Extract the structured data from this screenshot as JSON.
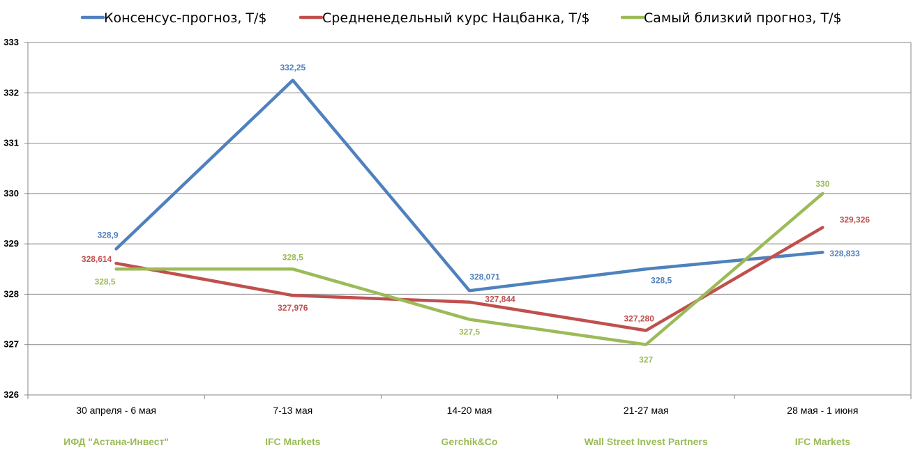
{
  "chart_data": {
    "type": "line",
    "categories": [
      "30 апреля - 6 мая",
      "7-13 мая",
      "14-20 мая",
      "21-27 мая",
      "28 мая - 1 июня"
    ],
    "subcategories": [
      "ИФД \"Астана-Инвест\"",
      "IFC Markets",
      "Gerchik&Co",
      "Wall Street Invest Partners",
      "IFC Markets"
    ],
    "subcategory_color": "#9bbb59",
    "ylim": [
      326,
      333
    ],
    "yticks": [
      326,
      327,
      328,
      329,
      330,
      331,
      332,
      333
    ],
    "grid": true,
    "legend_position": "top",
    "series": [
      {
        "name": "Консенсус-прогноз,  Т/$",
        "color": "#4f81bd",
        "values": [
          328.9,
          332.25,
          328.071,
          328.5,
          328.833
        ],
        "labels": [
          "328,9",
          "332,25",
          "328,071",
          "328,5",
          "328,833"
        ]
      },
      {
        "name": "Средненедельный  курс Нацбанка, Т/$",
        "color": "#c0504d",
        "values": [
          328.614,
          327.976,
          327.844,
          327.28,
          329.326
        ],
        "labels": [
          "328,614",
          "327,976",
          "327,844",
          "327,280",
          "329,326"
        ]
      },
      {
        "name": "Самый близкий прогноз, Т/$",
        "color": "#9bbb59",
        "values": [
          328.5,
          328.5,
          327.5,
          327.0,
          330.0
        ],
        "labels": [
          "328,5",
          "328,5",
          "327,5",
          "327",
          "330"
        ]
      }
    ]
  }
}
